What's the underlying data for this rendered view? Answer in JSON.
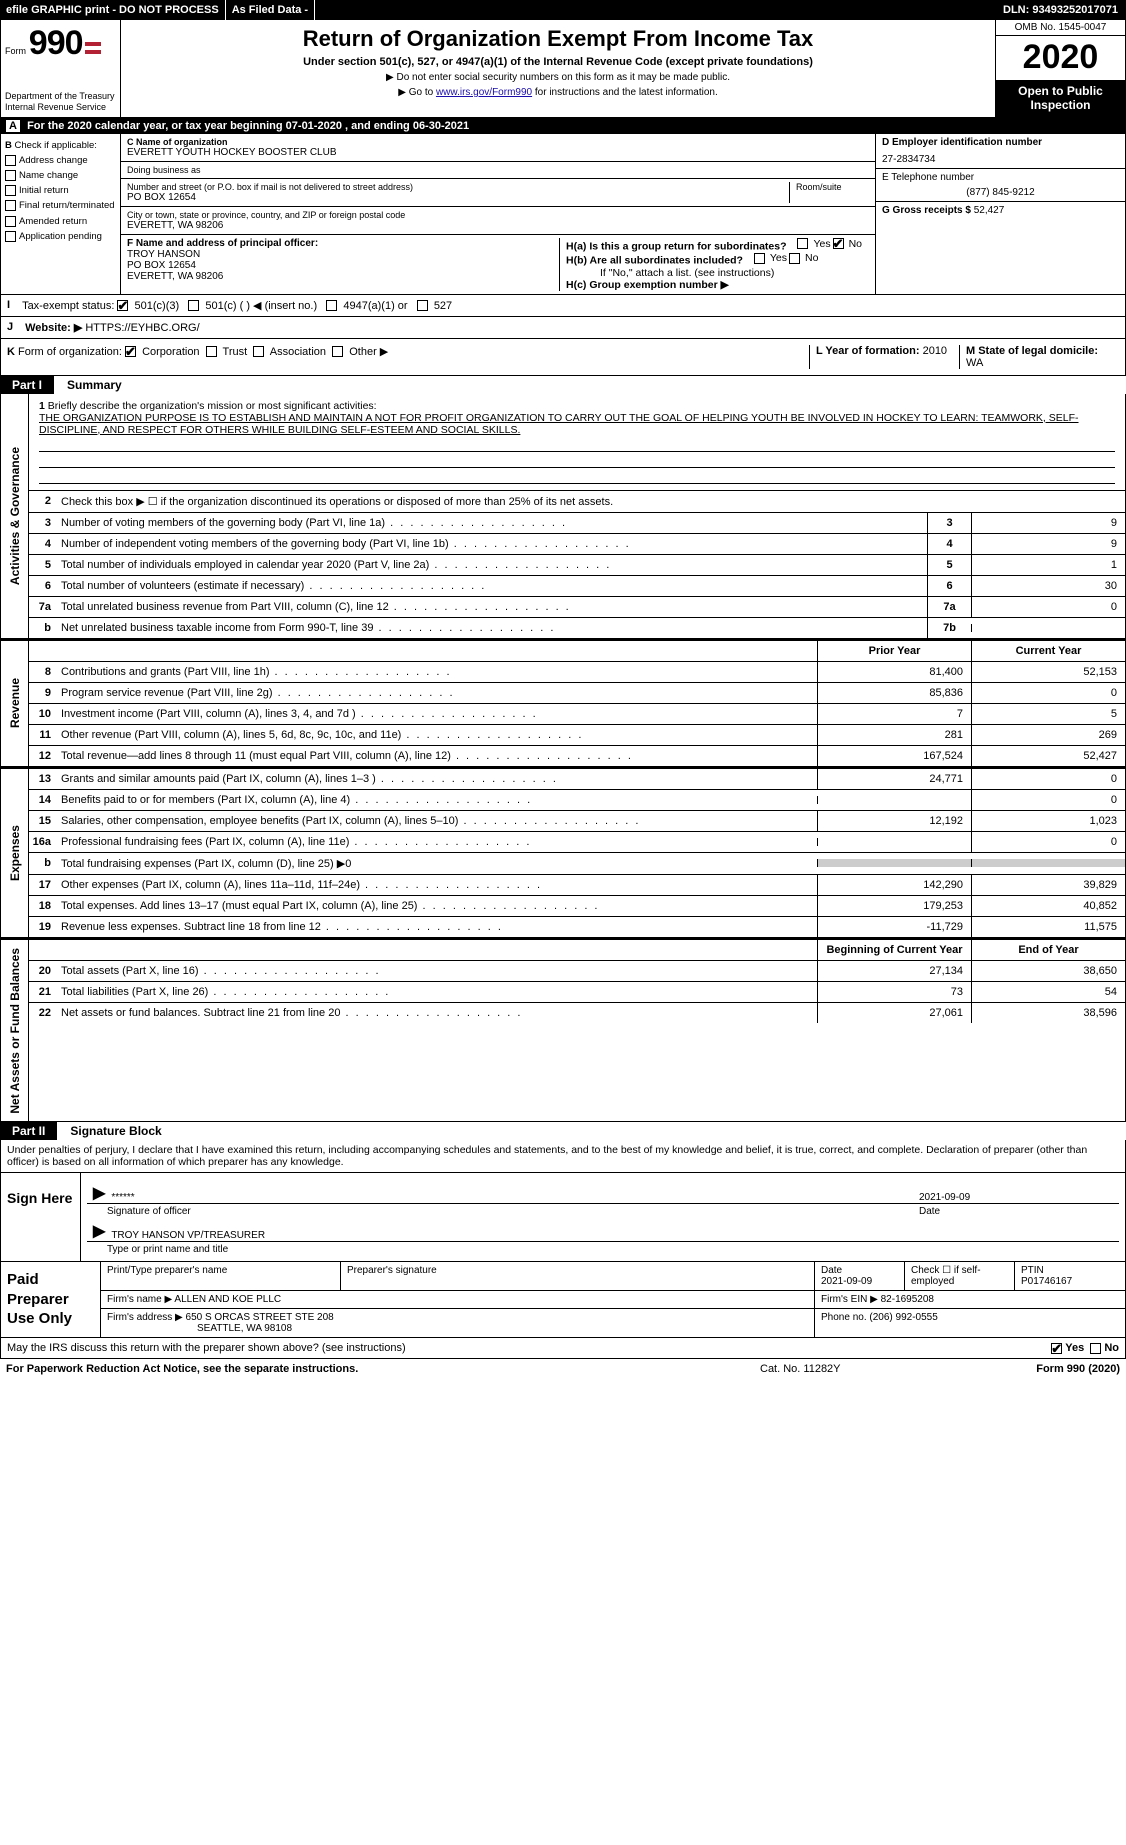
{
  "topbar": {
    "efile": "efile GRAPHIC print - DO NOT PROCESS",
    "asFiled": "As Filed Data -",
    "dln_label": "DLN:",
    "dln": "93493252017071"
  },
  "header": {
    "form_prefix": "Form",
    "form_no": "990",
    "dept": "Department of the Treasury\nInternal Revenue Service",
    "title": "Return of Organization Exempt From Income Tax",
    "subtitle": "Under section 501(c), 527, or 4947(a)(1) of the Internal Revenue Code (except private foundations)",
    "note1": "▶ Do not enter social security numbers on this form as it may be made public.",
    "note2_pre": "▶ Go to ",
    "note2_link": "www.irs.gov/Form990",
    "note2_post": " for instructions and the latest information.",
    "omb": "OMB No. 1545-0047",
    "year": "2020",
    "open_public": "Open to Public Inspection"
  },
  "rowA": {
    "label": "A",
    "text": "For the 2020 calendar year, or tax year beginning 07-01-2020   , and ending 06-30-2021"
  },
  "sectionB": {
    "label": "B",
    "check": "Check if applicable:",
    "opts": [
      "Address change",
      "Name change",
      "Initial return",
      "Final return/terminated",
      "Amended return",
      "Application pending"
    ]
  },
  "sectionC": {
    "name_label": "C Name of organization",
    "name": "EVERETT YOUTH HOCKEY BOOSTER CLUB",
    "dba_label": "Doing business as",
    "addr_label": "Number and street (or P.O. box if mail is not delivered to street address)",
    "room_label": "Room/suite",
    "addr": "PO BOX 12654",
    "city_label": "City or town, state or province, country, and ZIP or foreign postal code",
    "city": "EVERETT, WA  98206"
  },
  "sectionD": {
    "label": "D Employer identification number",
    "ein": "27-2834734",
    "phone_label": "E Telephone number",
    "phone": "(877) 845-9212",
    "gross_label": "G Gross receipts $",
    "gross": "52,427"
  },
  "sectionF": {
    "label": "F  Name and address of principal officer:",
    "name": "TROY HANSON",
    "addr1": "PO BOX 12654",
    "addr2": "EVERETT, WA  98206"
  },
  "sectionH": {
    "a": "H(a)  Is this a group return for subordinates?",
    "b": "H(b)  Are all subordinates included?",
    "b_note": "If \"No,\" attach a list. (see instructions)",
    "c": "H(c)  Group exemption number ▶",
    "ha_no_checked": true
  },
  "rowI": {
    "label": "I",
    "text": "Tax-exempt status:",
    "o1": "501(c)(3)",
    "o2": "501(c) (    ) ◀ (insert no.)",
    "o3": "4947(a)(1) or",
    "o4": "527"
  },
  "rowJ": {
    "label": "J",
    "text": "Website: ▶",
    "url": "HTTPS://EYHBC.ORG/"
  },
  "rowK": {
    "label": "K",
    "text": "Form of organization:",
    "opts": [
      "Corporation",
      "Trust",
      "Association",
      "Other ▶"
    ],
    "L_label": "L Year of formation:",
    "L_val": "2010",
    "M_label": "M State of legal domicile:",
    "M_val": "WA"
  },
  "part1": {
    "part": "Part I",
    "title": "Summary",
    "line1_label": "1",
    "line1_text": "Briefly describe the organization's mission or most significant activities:",
    "mission": "THE ORGANIZATION PURPOSE IS TO ESTABLISH AND MAINTAIN A NOT FOR PROFIT ORGANIZATION TO CARRY OUT THE GOAL OF HELPING YOUTH BE INVOLVED IN HOCKEY TO LEARN: TEAMWORK, SELF-DISCIPLINE, AND RESPECT FOR OTHERS WHILE BUILDING SELF-ESTEEM AND SOCIAL SKILLS.",
    "line2": "Check this box ▶ ☐ if the organization discontinued its operations or disposed of more than 25% of its net assets.",
    "vtab1": "Activities & Governance",
    "vtab2": "Revenue",
    "vtab3": "Expenses",
    "vtab4": "Net Assets or Fund Balances",
    "hdr_prior": "Prior Year",
    "hdr_curr": "Current Year",
    "hdr_beg": "Beginning of Current Year",
    "hdr_end": "End of Year",
    "lines_gov": [
      {
        "n": "3",
        "t": "Number of voting members of the governing body (Part VI, line 1a)",
        "b": "3",
        "v": "9"
      },
      {
        "n": "4",
        "t": "Number of independent voting members of the governing body (Part VI, line 1b)",
        "b": "4",
        "v": "9"
      },
      {
        "n": "5",
        "t": "Total number of individuals employed in calendar year 2020 (Part V, line 2a)",
        "b": "5",
        "v": "1"
      },
      {
        "n": "6",
        "t": "Total number of volunteers (estimate if necessary)",
        "b": "6",
        "v": "30"
      },
      {
        "n": "7a",
        "t": "Total unrelated business revenue from Part VIII, column (C), line 12",
        "b": "7a",
        "v": "0"
      },
      {
        "n": "b",
        "t": "Net unrelated business taxable income from Form 990-T, line 39",
        "b": "7b",
        "v": ""
      }
    ],
    "lines_rev": [
      {
        "n": "8",
        "t": "Contributions and grants (Part VIII, line 1h)",
        "p": "81,400",
        "c": "52,153"
      },
      {
        "n": "9",
        "t": "Program service revenue (Part VIII, line 2g)",
        "p": "85,836",
        "c": "0"
      },
      {
        "n": "10",
        "t": "Investment income (Part VIII, column (A), lines 3, 4, and 7d )",
        "p": "7",
        "c": "5"
      },
      {
        "n": "11",
        "t": "Other revenue (Part VIII, column (A), lines 5, 6d, 8c, 9c, 10c, and 11e)",
        "p": "281",
        "c": "269"
      },
      {
        "n": "12",
        "t": "Total revenue—add lines 8 through 11 (must equal Part VIII, column (A), line 12)",
        "p": "167,524",
        "c": "52,427"
      }
    ],
    "lines_exp": [
      {
        "n": "13",
        "t": "Grants and similar amounts paid (Part IX, column (A), lines 1–3 )",
        "p": "24,771",
        "c": "0"
      },
      {
        "n": "14",
        "t": "Benefits paid to or for members (Part IX, column (A), line 4)",
        "p": "",
        "c": "0"
      },
      {
        "n": "15",
        "t": "Salaries, other compensation, employee benefits (Part IX, column (A), lines 5–10)",
        "p": "12,192",
        "c": "1,023"
      },
      {
        "n": "16a",
        "t": "Professional fundraising fees (Part IX, column (A), line 11e)",
        "p": "",
        "c": "0"
      },
      {
        "n": "b",
        "t": "Total fundraising expenses (Part IX, column (D), line 25) ▶0",
        "p": "—",
        "c": "—"
      },
      {
        "n": "17",
        "t": "Other expenses (Part IX, column (A), lines 11a–11d, 11f–24e)",
        "p": "142,290",
        "c": "39,829"
      },
      {
        "n": "18",
        "t": "Total expenses. Add lines 13–17 (must equal Part IX, column (A), line 25)",
        "p": "179,253",
        "c": "40,852"
      },
      {
        "n": "19",
        "t": "Revenue less expenses. Subtract line 18 from line 12",
        "p": "-11,729",
        "c": "11,575"
      }
    ],
    "lines_net": [
      {
        "n": "20",
        "t": "Total assets (Part X, line 16)",
        "p": "27,134",
        "c": "38,650"
      },
      {
        "n": "21",
        "t": "Total liabilities (Part X, line 26)",
        "p": "73",
        "c": "54"
      },
      {
        "n": "22",
        "t": "Net assets or fund balances. Subtract line 21 from line 20",
        "p": "27,061",
        "c": "38,596"
      }
    ]
  },
  "part2": {
    "part": "Part II",
    "title": "Signature Block",
    "intro": "Under penalties of perjury, I declare that I have examined this return, including accompanying schedules and statements, and to the best of my knowledge and belief, it is true, correct, and complete. Declaration of preparer (other than officer) is based on all information of which preparer has any knowledge.",
    "sign_label": "Sign Here",
    "stars": "******",
    "sig_of_officer": "Signature of officer",
    "sig_date": "2021-09-09",
    "date_label": "Date",
    "officer_name": "TROY HANSON VP/TREASURER",
    "type_name": "Type or print name and title",
    "prep_label": "Paid Preparer Use Only",
    "prep_name_lbl": "Print/Type preparer's name",
    "prep_sig_lbl": "Preparer's signature",
    "prep_date_lbl": "Date",
    "prep_date": "2021-09-09",
    "check_self": "Check ☐ if self-employed",
    "ptin_lbl": "PTIN",
    "ptin": "P01746167",
    "firm_name_lbl": "Firm's name    ▶",
    "firm_name": "ALLEN AND KOE PLLC",
    "firm_ein_lbl": "Firm's EIN ▶",
    "firm_ein": "82-1695208",
    "firm_addr_lbl": "Firm's address ▶",
    "firm_addr1": "650 S ORCAS STREET STE 208",
    "firm_addr2": "SEATTLE, WA  98108",
    "firm_phone_lbl": "Phone no.",
    "firm_phone": "(206) 992-0555",
    "may_irs": "May the IRS discuss this return with the preparer shown above? (see instructions)",
    "yes": "Yes",
    "no": "No",
    "footer_left": "For Paperwork Reduction Act Notice, see the separate instructions.",
    "cat": "Cat. No. 11282Y",
    "footer_right": "Form 990 (2020)"
  }
}
